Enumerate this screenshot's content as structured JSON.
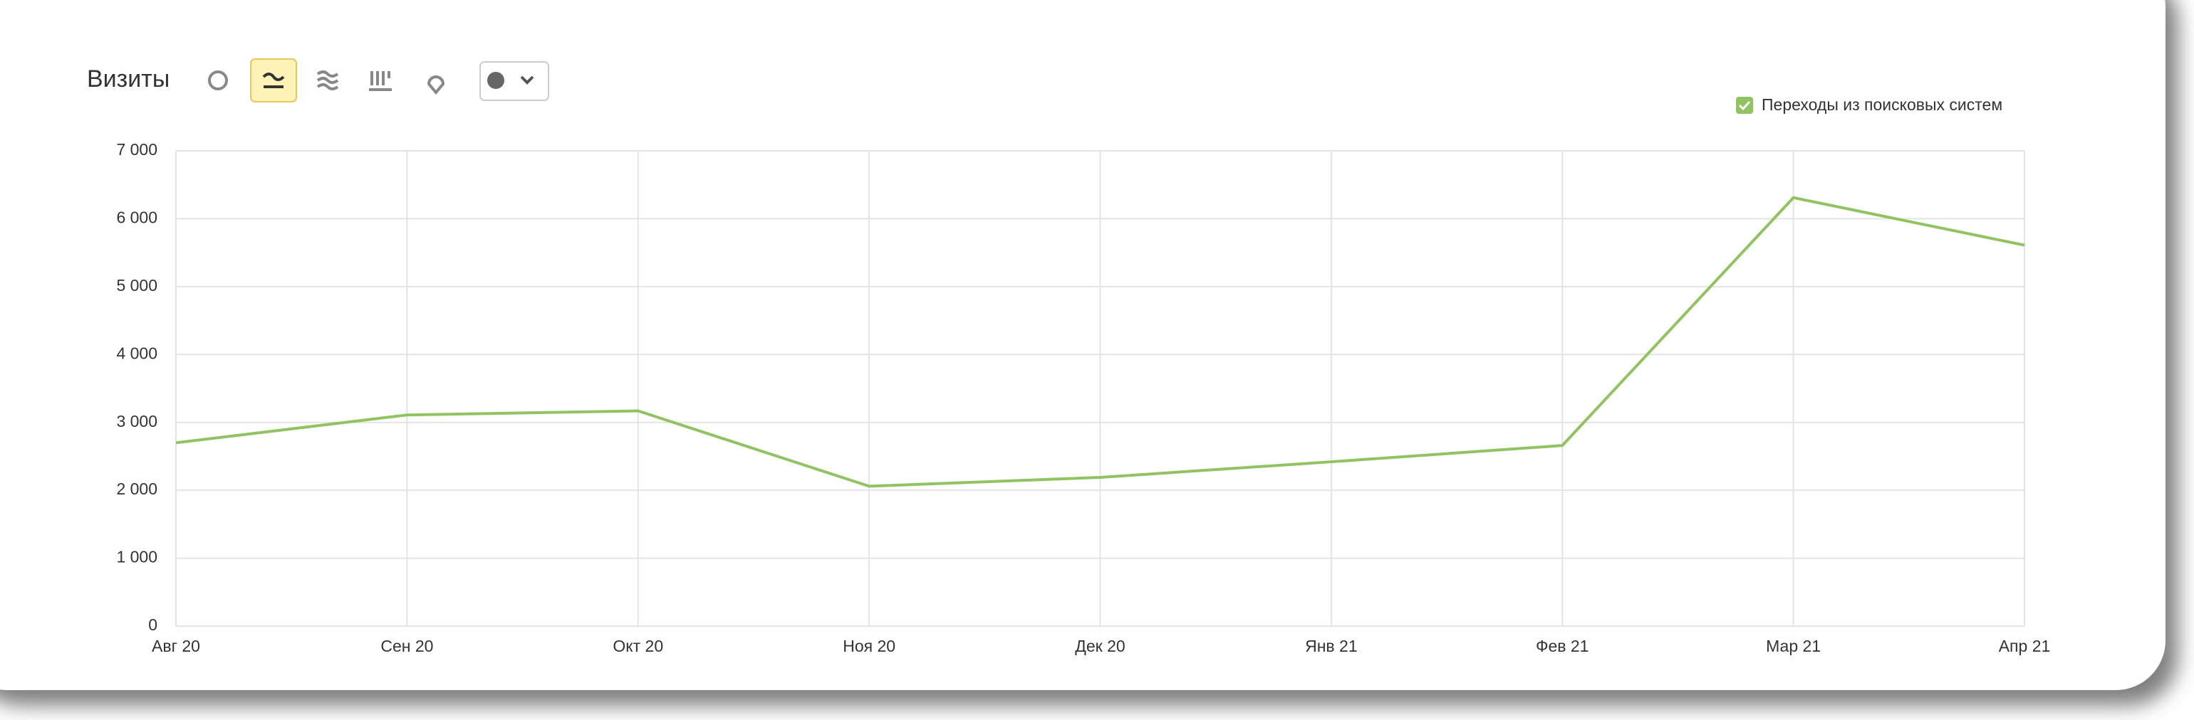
{
  "chart_data": {
    "type": "line",
    "title": "Визиты",
    "categories": [
      "Авг 20",
      "Сен 20",
      "Окт 20",
      "Ноя 20",
      "Дек 20",
      "Янв 21",
      "Фев 21",
      "Мар 21",
      "Апр 21"
    ],
    "series": [
      {
        "name": "Переходы из поисковых систем",
        "color": "#91c362",
        "values": [
          2700,
          3110,
          3170,
          2060,
          2190,
          2420,
          2660,
          6310,
          5610
        ]
      }
    ],
    "ylim": [
      0,
      7000
    ],
    "yticks": [
      0,
      {
        "value": 1000,
        "label": "1 000"
      },
      {
        "value": 2000,
        "label": "2 000"
      },
      {
        "value": 3000,
        "label": "3 000"
      },
      {
        "value": 4000,
        "label": "4 000"
      },
      {
        "value": 5000,
        "label": "5 000"
      },
      {
        "value": 6000,
        "label": "6 000"
      },
      {
        "value": 7000,
        "label": "7 000"
      }
    ],
    "grid": true
  }
}
